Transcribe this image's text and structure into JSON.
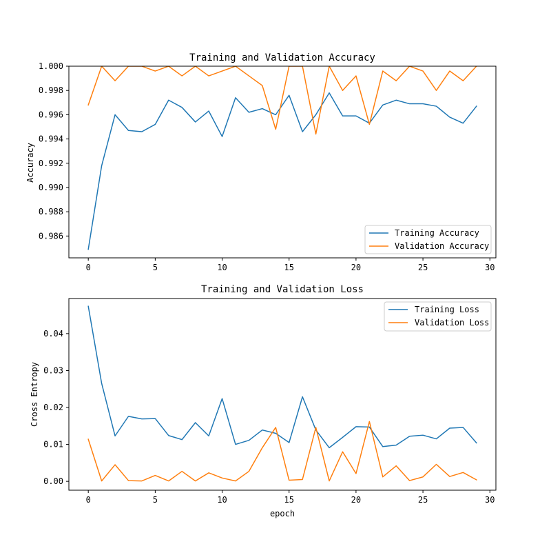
{
  "chart_data": [
    {
      "type": "line",
      "title": "Training and Validation Accuracy",
      "xlabel": "",
      "ylabel": "Accuracy",
      "xlim": [
        -1.45,
        30.45
      ],
      "ylim": [
        0.9842,
        1.0
      ],
      "xticks": [
        0,
        5,
        10,
        15,
        20,
        25,
        30
      ],
      "xtick_labels": [
        "0",
        "5",
        "10",
        "15",
        "20",
        "25",
        "30"
      ],
      "yticks": [
        0.986,
        0.988,
        0.99,
        0.992,
        0.994,
        0.996,
        0.998,
        1.0
      ],
      "ytick_labels": [
        "0.986",
        "0.988",
        "0.990",
        "0.992",
        "0.994",
        "0.996",
        "0.998",
        "1.000"
      ],
      "legend_position": "lower-right",
      "x": [
        0,
        1,
        2,
        3,
        4,
        5,
        6,
        7,
        8,
        9,
        10,
        11,
        12,
        13,
        14,
        15,
        16,
        17,
        18,
        19,
        20,
        21,
        22,
        23,
        24,
        25,
        26,
        27,
        28,
        29
      ],
      "series": [
        {
          "name": "Training Accuracy",
          "color": "#1f77b4",
          "values": [
            0.9849,
            0.9918,
            0.996,
            0.9947,
            0.9946,
            0.9952,
            0.9972,
            0.9966,
            0.9954,
            0.9963,
            0.9942,
            0.9974,
            0.9962,
            0.9965,
            0.996,
            0.9976,
            0.9946,
            0.996,
            0.9978,
            0.9959,
            0.9959,
            0.9953,
            0.9968,
            0.9972,
            0.9969,
            0.9969,
            0.9967,
            0.9958,
            0.9953,
            0.9967
          ]
        },
        {
          "name": "Validation Accuracy",
          "color": "#ff7f0e",
          "values": [
            0.9968,
            1.0,
            0.9988,
            1.0,
            1.0,
            0.9996,
            1.0,
            0.9992,
            1.0,
            0.9992,
            0.9996,
            1.0,
            0.9992,
            0.9984,
            0.9948,
            1.0,
            1.0,
            0.9944,
            1.0,
            0.998,
            0.9992,
            0.9952,
            0.9996,
            0.9988,
            1.0,
            0.9996,
            0.998,
            0.9996,
            0.9988,
            1.0
          ]
        }
      ]
    },
    {
      "type": "line",
      "title": "Training and Validation Loss",
      "xlabel": "epoch",
      "ylabel": "Cross Entropy",
      "xlim": [
        -1.45,
        30.45
      ],
      "ylim": [
        -0.0024,
        0.0495
      ],
      "xticks": [
        0,
        5,
        10,
        15,
        20,
        25,
        30
      ],
      "xtick_labels": [
        "0",
        "5",
        "10",
        "15",
        "20",
        "25",
        "30"
      ],
      "yticks": [
        0.0,
        0.01,
        0.02,
        0.03,
        0.04
      ],
      "ytick_labels": [
        "0.00",
        "0.01",
        "0.02",
        "0.03",
        "0.04"
      ],
      "legend_position": "upper-right",
      "x": [
        0,
        1,
        2,
        3,
        4,
        5,
        6,
        7,
        8,
        9,
        10,
        11,
        12,
        13,
        14,
        15,
        16,
        17,
        18,
        19,
        20,
        21,
        22,
        23,
        24,
        25,
        26,
        27,
        28,
        29
      ],
      "series": [
        {
          "name": "Training Loss",
          "color": "#1f77b4",
          "values": [
            0.0474,
            0.0265,
            0.0123,
            0.0176,
            0.0169,
            0.017,
            0.0124,
            0.0113,
            0.0159,
            0.0123,
            0.0224,
            0.01,
            0.0111,
            0.0139,
            0.013,
            0.0105,
            0.0229,
            0.0139,
            0.0091,
            0.0119,
            0.0148,
            0.0147,
            0.0094,
            0.0098,
            0.0122,
            0.0125,
            0.0115,
            0.0144,
            0.0146,
            0.0104
          ]
        },
        {
          "name": "Validation Loss",
          "color": "#ff7f0e",
          "values": [
            0.0114,
            0.0001,
            0.0045,
            0.0002,
            0.0001,
            0.0016,
            0.0001,
            0.0027,
            0.0001,
            0.0023,
            0.0009,
            0.0001,
            0.0027,
            0.0091,
            0.0146,
            0.0003,
            0.0005,
            0.0146,
            0.0001,
            0.008,
            0.0021,
            0.0162,
            0.0012,
            0.0042,
            0.0002,
            0.0012,
            0.0046,
            0.0013,
            0.0024,
            0.0004
          ]
        }
      ]
    }
  ]
}
